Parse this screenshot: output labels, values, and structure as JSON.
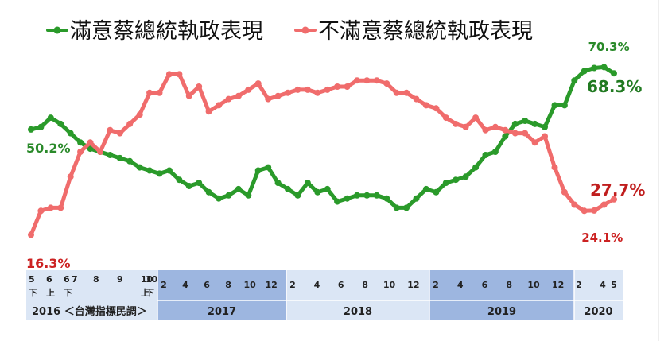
{
  "chart_data": {
    "type": "line",
    "title": "",
    "xlabel": "",
    "ylabel": "",
    "ylim": [
      10,
      75
    ],
    "grid": false,
    "legend_position": "top",
    "source_label": "2016 ＜台灣指標民調＞",
    "period_labels": [
      "2017",
      "2018",
      "2019",
      "2020"
    ],
    "pre_tick_labels": [
      "5\n下",
      "6\n上",
      "6\n下",
      "7",
      "8",
      "9",
      "10\n上",
      "10\n下"
    ],
    "tick_labels": [
      "2",
      "4",
      "6",
      "8",
      "10",
      "12",
      "2",
      "4",
      "6",
      "8",
      "10",
      "12",
      "2",
      "4",
      "6",
      "8",
      "10",
      "12",
      "2",
      "4",
      "5"
    ],
    "colors": {
      "green": "#2a9a2a",
      "red": "#f06c6c",
      "bar_dark": "#9db6e0",
      "bar_light": "#dbe6f5"
    },
    "series": [
      {
        "name": "滿意蔡總統執政表現",
        "values": [
          50.2,
          51,
          54,
          52,
          49,
          46,
          44,
          43,
          42,
          41,
          40,
          38,
          37,
          36,
          37,
          34,
          32,
          33,
          30,
          28,
          29,
          31,
          29,
          37,
          38,
          33,
          31,
          29,
          33,
          30,
          31,
          27,
          28,
          29,
          29,
          29,
          28,
          25,
          25,
          28,
          31,
          30,
          33,
          34,
          35,
          38,
          42,
          43,
          48,
          52,
          53,
          52,
          51,
          58,
          58,
          66,
          69,
          70,
          70.3,
          68.3
        ],
        "labels": [
          {
            "text": "50.2%",
            "index": 0
          },
          {
            "text": "70.3%",
            "index": 58
          },
          {
            "text": "68.3%",
            "index": 59
          }
        ]
      },
      {
        "name": "不滿意蔡總統執政表現",
        "values": [
          16.3,
          24,
          25,
          25,
          35,
          43,
          46,
          43,
          50,
          49,
          52,
          55,
          62,
          62,
          68,
          68,
          61,
          64,
          56,
          58,
          60,
          61,
          63,
          65,
          60,
          61,
          62,
          63,
          63,
          62,
          63,
          64,
          64,
          66,
          66,
          66,
          65,
          62,
          62,
          60,
          58,
          57,
          54,
          52,
          51,
          54,
          50,
          51,
          50,
          49,
          49,
          46,
          48,
          38,
          30,
          26,
          24,
          24.1,
          26,
          27.7
        ],
        "labels": [
          {
            "text": "16.3%",
            "index": 0
          },
          {
            "text": "24.1%",
            "index": 57
          },
          {
            "text": "27.7%",
            "index": 59
          }
        ]
      }
    ]
  }
}
